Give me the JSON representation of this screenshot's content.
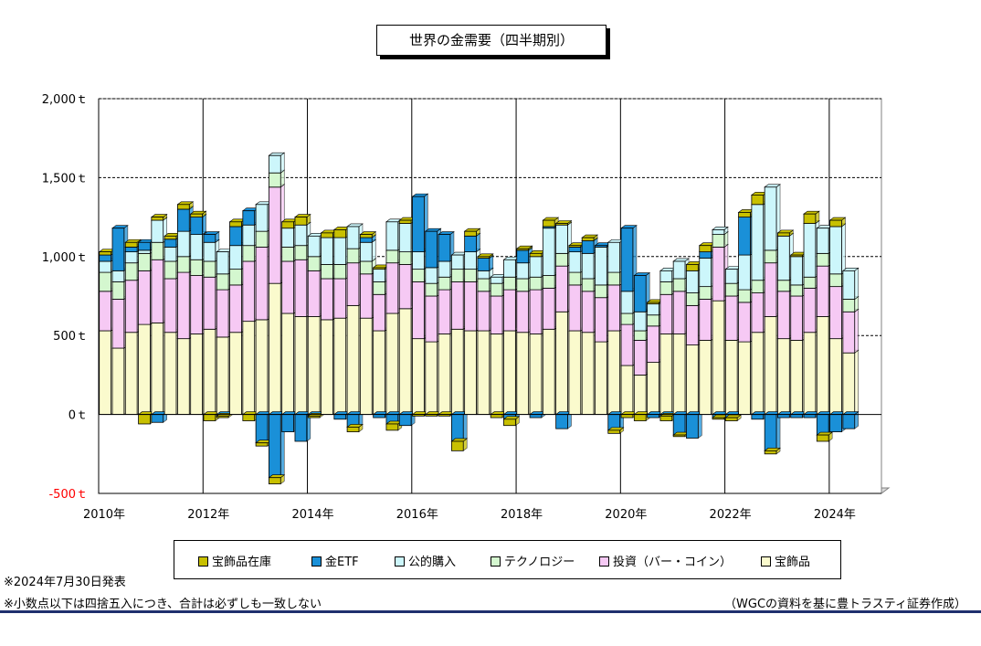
{
  "title": "世界の金需要（四半期別）",
  "legend": {
    "items": [
      {
        "label": "宝飾品在庫",
        "color": "#c8c000"
      },
      {
        "label": "金ETF",
        "color": "#1a90d8"
      },
      {
        "label": "公的購入",
        "color": "#ccf6fb"
      },
      {
        "label": "テクノロジー",
        "color": "#d4f7cf"
      },
      {
        "label": "投資（バー・コイン）",
        "color": "#f6c9f4"
      },
      {
        "label": "宝飾品",
        "color": "#fafacd"
      }
    ]
  },
  "notes": {
    "published": "※2024年7月30日発表",
    "rounding": "※小数点以下は四捨五入につき、合計は必ずしも一致しない"
  },
  "source": "（WGCの資料を基に豊トラスティ証券作成）",
  "chart_data": {
    "type": "bar",
    "stacked": true,
    "grid": true,
    "ylim": [
      -500,
      2000
    ],
    "y_ticks": [
      {
        "value": 2000,
        "label": "2,000ｔ"
      },
      {
        "value": 1500,
        "label": "1,500ｔ"
      },
      {
        "value": 1000,
        "label": "1,000ｔ"
      },
      {
        "value": 500,
        "label": "500ｔ"
      },
      {
        "value": 0,
        "label": "0ｔ"
      },
      {
        "value": -500,
        "label": "-500ｔ"
      }
    ],
    "x_labels": [
      "2010年",
      "2012年",
      "2014年",
      "2016年",
      "2018年",
      "2020年",
      "2022年",
      "2024年"
    ],
    "categories": [
      "2010Q1",
      "2010Q2",
      "2010Q3",
      "2010Q4",
      "2011Q1",
      "2011Q2",
      "2011Q3",
      "2011Q4",
      "2012Q1",
      "2012Q2",
      "2012Q3",
      "2012Q4",
      "2013Q1",
      "2013Q2",
      "2013Q3",
      "2013Q4",
      "2014Q1",
      "2014Q2",
      "2014Q3",
      "2014Q4",
      "2015Q1",
      "2015Q2",
      "2015Q3",
      "2015Q4",
      "2016Q1",
      "2016Q2",
      "2016Q3",
      "2016Q4",
      "2017Q1",
      "2017Q2",
      "2017Q3",
      "2017Q4",
      "2018Q1",
      "2018Q2",
      "2018Q3",
      "2018Q4",
      "2019Q1",
      "2019Q2",
      "2019Q3",
      "2019Q4",
      "2020Q1",
      "2020Q2",
      "2020Q3",
      "2020Q4",
      "2021Q1",
      "2021Q2",
      "2021Q3",
      "2021Q4",
      "2022Q1",
      "2022Q2",
      "2022Q3",
      "2022Q4",
      "2023Q1",
      "2023Q2",
      "2023Q3",
      "2023Q4",
      "2024Q1",
      "2024Q2"
    ],
    "series": [
      {
        "name": "宝飾品",
        "values": [
          530,
          420,
          520,
          570,
          580,
          520,
          480,
          510,
          540,
          490,
          520,
          590,
          600,
          830,
          640,
          620,
          620,
          600,
          610,
          690,
          610,
          530,
          640,
          670,
          480,
          460,
          510,
          540,
          530,
          530,
          510,
          530,
          520,
          510,
          540,
          650,
          530,
          520,
          460,
          530,
          310,
          250,
          330,
          510,
          510,
          440,
          470,
          720,
          470,
          460,
          520,
          620,
          480,
          470,
          520,
          620,
          480,
          390
        ]
      },
      {
        "name": "投資（バー・コイン）",
        "values": [
          250,
          310,
          330,
          340,
          400,
          340,
          420,
          370,
          330,
          300,
          300,
          380,
          460,
          610,
          330,
          360,
          290,
          260,
          250,
          270,
          280,
          230,
          320,
          280,
          360,
          290,
          280,
          300,
          310,
          250,
          240,
          260,
          260,
          280,
          260,
          290,
          290,
          260,
          280,
          290,
          260,
          220,
          230,
          250,
          270,
          250,
          260,
          340,
          280,
          250,
          250,
          340,
          300,
          280,
          280,
          320,
          330,
          260
        ]
      },
      {
        "name": "テクノロジー",
        "values": [
          120,
          110,
          110,
          110,
          110,
          110,
          100,
          100,
          100,
          100,
          100,
          100,
          100,
          90,
          90,
          90,
          90,
          90,
          90,
          90,
          80,
          80,
          80,
          80,
          80,
          80,
          80,
          80,
          80,
          80,
          80,
          80,
          80,
          80,
          80,
          80,
          80,
          80,
          80,
          80,
          70,
          60,
          70,
          80,
          80,
          80,
          80,
          80,
          80,
          80,
          80,
          80,
          70,
          70,
          70,
          80,
          80,
          80
        ]
      },
      {
        "name": "公的購入",
        "values": [
          70,
          70,
          70,
          20,
          140,
          90,
          160,
          160,
          120,
          140,
          150,
          130,
          170,
          110,
          120,
          130,
          130,
          170,
          170,
          140,
          120,
          80,
          180,
          180,
          110,
          100,
          100,
          90,
          110,
          50,
          40,
          110,
          100,
          130,
          300,
          180,
          130,
          160,
          240,
          190,
          140,
          120,
          70,
          70,
          110,
          140,
          180,
          30,
          90,
          220,
          480,
          400,
          280,
          180,
          340,
          160,
          300,
          180
        ]
      },
      {
        "name": "金ETF",
        "values": [
          40,
          270,
          30,
          50,
          -50,
          50,
          140,
          110,
          50,
          -10,
          120,
          90,
          -180,
          -400,
          -110,
          -170,
          -10,
          0,
          -30,
          -80,
          30,
          -20,
          -60,
          -70,
          350,
          230,
          170,
          -170,
          100,
          80,
          0,
          -30,
          80,
          -20,
          10,
          -90,
          30,
          80,
          10,
          -100,
          400,
          230,
          -20,
          -10,
          -130,
          -150,
          40,
          -20,
          -20,
          240,
          -30,
          -230,
          -20,
          -20,
          -20,
          -130,
          -110,
          -90
        ]
      },
      {
        "name": "宝飾品在庫",
        "values": [
          20,
          0,
          30,
          -60,
          20,
          20,
          30,
          20,
          -40,
          -10,
          30,
          -40,
          -20,
          -40,
          40,
          50,
          -10,
          30,
          50,
          -30,
          20,
          10,
          -40,
          20,
          -10,
          -10,
          -10,
          -60,
          30,
          10,
          -20,
          -40,
          10,
          20,
          40,
          10,
          10,
          20,
          0,
          -20,
          -20,
          -40,
          10,
          -30,
          -10,
          40,
          40,
          -10,
          -20,
          30,
          60,
          -20,
          20,
          10,
          60,
          -40,
          40,
          0
        ]
      }
    ]
  }
}
